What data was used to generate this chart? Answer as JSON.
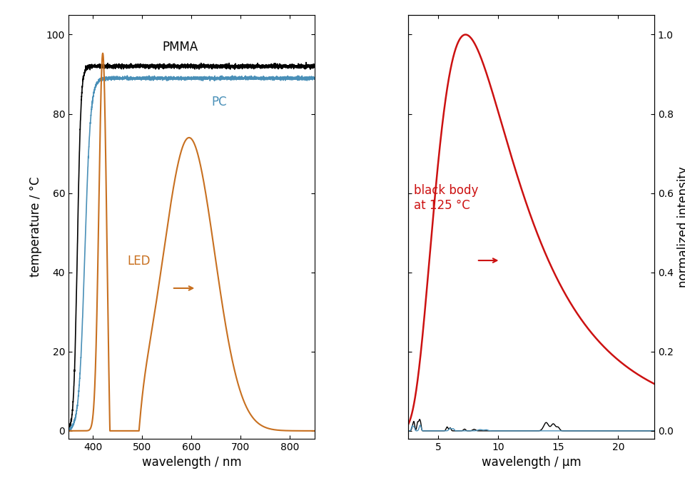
{
  "left_xlabel": "wavelength / nm",
  "left_ylabel": "temperature / °C",
  "right_xlabel": "wavelength / μm",
  "right_ylabel": "normalized intensity",
  "pmma_label": "PMMA",
  "pc_label": "PC",
  "led_label": "LED",
  "bb_label": "black body\nat 125 °C",
  "pmma_color": "#000000",
  "pc_color": "#4a90b8",
  "led_color": "#c87020",
  "bb_color": "#cc1111",
  "left_xlim": [
    350,
    850
  ],
  "left_ylim": [
    -2,
    105
  ],
  "right_xlim": [
    2.5,
    23
  ],
  "right_ylim": [
    -0.02,
    1.05
  ],
  "left_xticks": [
    400,
    500,
    600,
    700,
    800
  ],
  "left_yticks": [
    0,
    20,
    40,
    60,
    80,
    100
  ],
  "right_xticks": [
    5,
    10,
    15,
    20
  ],
  "right_yticks": [
    0.0,
    0.2,
    0.4,
    0.6,
    0.8,
    1.0
  ],
  "background_color": "#ffffff"
}
